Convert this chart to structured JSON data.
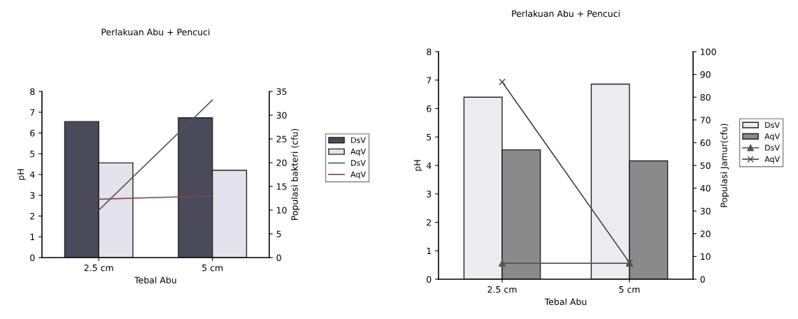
{
  "chart_data": [
    {
      "type": "bar",
      "title": "Perlakuan Abu + Pencuci",
      "xlabel": "Tebal Abu",
      "ylabel": "pH",
      "y2label": "Populasi bakteri (cfu)",
      "categories": [
        "2.5 cm",
        "5 cm"
      ],
      "ylim": [
        0,
        8
      ],
      "yticks": [
        0,
        1,
        2,
        3,
        4,
        5,
        6,
        7,
        8
      ],
      "y2lim": [
        0,
        35
      ],
      "y2ticks": [
        0,
        5,
        10,
        15,
        20,
        25,
        30,
        35
      ],
      "legend": "right",
      "grid": false,
      "series": [
        {
          "name": "DsV",
          "color": "#4a4a5a",
          "values": [
            6.55,
            6.73
          ]
        },
        {
          "name": "AqV",
          "color": "#e4e2ea",
          "values": [
            4.56,
            4.2
          ]
        },
        {
          "name": "DsV",
          "type": "line",
          "axis": "y2",
          "color": "#555555",
          "marker": "none",
          "values": [
            10.0,
            33.2
          ]
        },
        {
          "name": "AqV",
          "type": "line",
          "axis": "y2",
          "color": "#7a4a4a",
          "marker": "none",
          "values": [
            12.3,
            13.0
          ]
        }
      ]
    },
    {
      "type": "bar",
      "title": "Perlakuan Abu + Pencuci",
      "xlabel": "Tebal Abu",
      "ylabel": "pH",
      "y2label": "Populasi Jamur(cfu)",
      "categories": [
        "2.5 cm",
        "5 cm"
      ],
      "ylim": [
        0,
        8
      ],
      "yticks": [
        0,
        1,
        2,
        3,
        4,
        5,
        6,
        7,
        8
      ],
      "y2lim": [
        0,
        100
      ],
      "y2ticks": [
        0,
        10,
        20,
        30,
        40,
        50,
        60,
        70,
        80,
        90,
        100
      ],
      "legend": "right",
      "grid": false,
      "series": [
        {
          "name": "DsV",
          "color": "#ececf0",
          "values": [
            6.4,
            6.86
          ]
        },
        {
          "name": "AqV",
          "color": "#8a8a8a",
          "values": [
            4.55,
            4.16
          ]
        },
        {
          "name": "DsV",
          "type": "line",
          "axis": "y2",
          "color": "#555555",
          "marker": "triangle",
          "values": [
            7.0,
            7.0
          ]
        },
        {
          "name": "AqV",
          "type": "line",
          "axis": "y2",
          "color": "#444444",
          "marker": "cross",
          "values": [
            86.7,
            7.3
          ]
        }
      ]
    }
  ]
}
